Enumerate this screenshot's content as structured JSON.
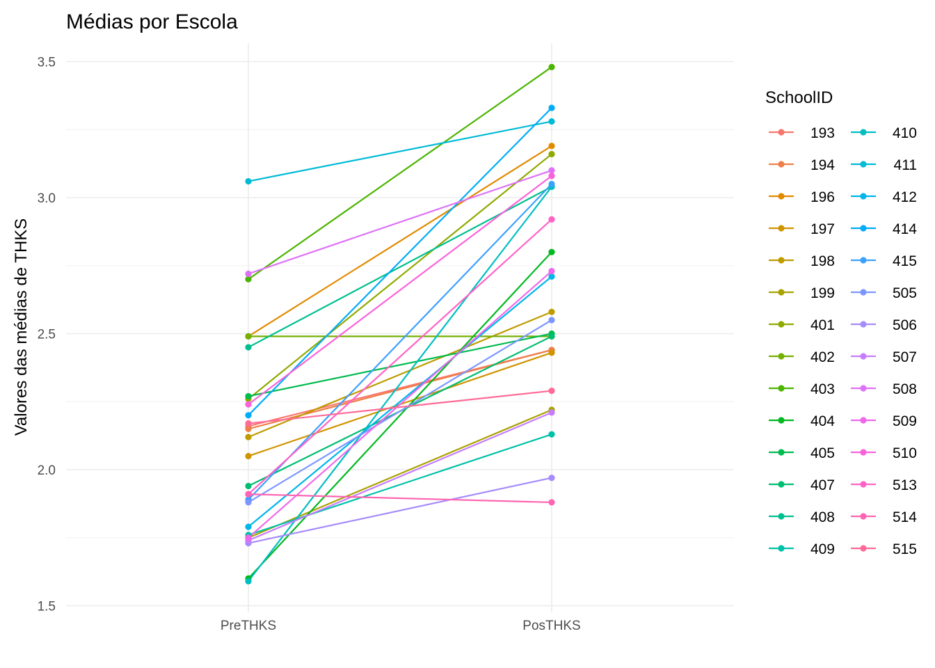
{
  "chart_data": {
    "type": "line",
    "title": "Médias por Escola",
    "xlabel": "",
    "ylabel": "Valores das médias de THKS",
    "categories": [
      "PreTHKS",
      "PosTHKS"
    ],
    "ylim": [
      1.5,
      3.55
    ],
    "yticks": [
      1.5,
      2.0,
      2.5,
      3.0,
      3.5
    ],
    "yticks_labels": [
      "1.5",
      "2.0",
      "2.5",
      "3.0",
      "3.5"
    ],
    "grid": true,
    "legend_title": "SchoolID",
    "legend_position": "right",
    "series": [
      {
        "name": "193",
        "color": "#F8766D",
        "values": [
          2.16,
          2.44
        ]
      },
      {
        "name": "194",
        "color": "#EF7F48",
        "values": [
          2.15,
          2.44
        ]
      },
      {
        "name": "196",
        "color": "#E18A00",
        "values": [
          2.49,
          3.19
        ]
      },
      {
        "name": "197",
        "color": "#D09400",
        "values": [
          2.05,
          2.43
        ]
      },
      {
        "name": "198",
        "color": "#BE9C00",
        "values": [
          2.12,
          2.58
        ]
      },
      {
        "name": "199",
        "color": "#A8A300",
        "values": [
          1.75,
          2.22
        ]
      },
      {
        "name": "401",
        "color": "#8FAA00",
        "values": [
          2.26,
          3.16
        ]
      },
      {
        "name": "402",
        "color": "#73B000",
        "values": [
          2.49,
          2.49
        ]
      },
      {
        "name": "403",
        "color": "#4BB400",
        "values": [
          2.7,
          3.48
        ]
      },
      {
        "name": "404",
        "color": "#00B81F",
        "values": [
          1.6,
          2.8
        ]
      },
      {
        "name": "405",
        "color": "#00BB4E",
        "values": [
          2.27,
          2.5
        ]
      },
      {
        "name": "407",
        "color": "#00BD71",
        "values": [
          1.94,
          2.49
        ]
      },
      {
        "name": "408",
        "color": "#00BF8E",
        "values": [
          2.45,
          3.04
        ]
      },
      {
        "name": "409",
        "color": "#00C0A8",
        "values": [
          1.76,
          2.13
        ]
      },
      {
        "name": "410",
        "color": "#00BEC0",
        "values": [
          1.59,
          3.04
        ]
      },
      {
        "name": "411",
        "color": "#00BBD6",
        "values": [
          3.06,
          3.28
        ]
      },
      {
        "name": "412",
        "color": "#00B5E9",
        "values": [
          1.79,
          2.71
        ]
      },
      {
        "name": "414",
        "color": "#00ABFA",
        "values": [
          2.2,
          3.33
        ]
      },
      {
        "name": "415",
        "color": "#3CA0FF",
        "values": [
          1.89,
          3.05
        ]
      },
      {
        "name": "505",
        "color": "#7C96FF",
        "values": [
          1.88,
          2.55
        ]
      },
      {
        "name": "506",
        "color": "#A68BFC",
        "values": [
          1.73,
          1.97
        ]
      },
      {
        "name": "507",
        "color": "#C77CFF",
        "values": [
          1.74,
          2.21
        ]
      },
      {
        "name": "508",
        "color": "#DE71F9",
        "values": [
          2.72,
          3.1
        ]
      },
      {
        "name": "509",
        "color": "#EF67EB",
        "values": [
          1.75,
          2.73
        ]
      },
      {
        "name": "510",
        "color": "#FA62DA",
        "values": [
          2.24,
          3.08
        ]
      },
      {
        "name": "513",
        "color": "#FF62C7",
        "values": [
          1.91,
          2.92
        ]
      },
      {
        "name": "514",
        "color": "#FF63B1",
        "values": [
          1.91,
          1.88
        ]
      },
      {
        "name": "515",
        "color": "#FF6A98",
        "values": [
          2.17,
          2.29
        ]
      }
    ]
  }
}
